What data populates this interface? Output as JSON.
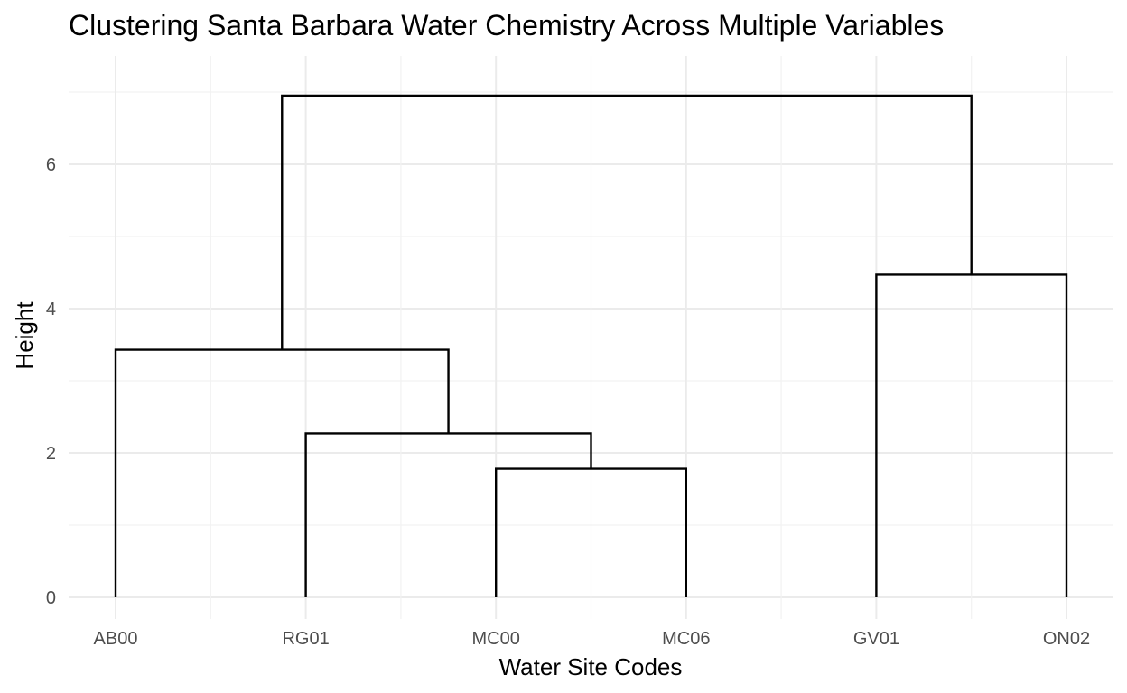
{
  "chart_data": {
    "type": "dendrogram",
    "title": "Clustering Santa Barbara Water Chemistry Across Multiple Variables",
    "xlabel": "Water Site Codes",
    "ylabel": "Height",
    "leaves": [
      "AB00",
      "RG01",
      "MC00",
      "MC06",
      "GV01",
      "ON02"
    ],
    "ylim": [
      -0.3,
      7.5
    ],
    "y_ticks": [
      0,
      2,
      4,
      6
    ],
    "grid": true,
    "line_color": "#000000",
    "merges": [
      {
        "left": "MC00",
        "right": "MC06",
        "height": 1.78
      },
      {
        "left": "RG01",
        "right": "MC00+MC06",
        "height": 2.27
      },
      {
        "left": "AB00",
        "right": "RG01+MC00+MC06",
        "height": 3.43
      },
      {
        "left": "GV01",
        "right": "ON02",
        "height": 4.47
      },
      {
        "left": "AB00+RG01+MC00+MC06",
        "right": "GV01+ON02",
        "height": 6.95
      }
    ]
  }
}
